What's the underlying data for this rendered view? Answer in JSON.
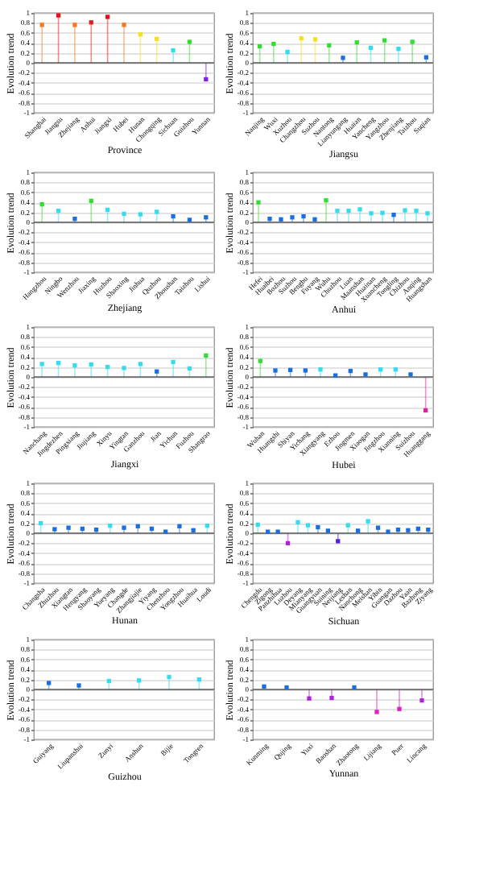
{
  "chart_data": [
    {
      "type": "lollipop",
      "xlabel": "Province",
      "ylabel": "Evolution trend",
      "categories": [
        "Shanghai",
        "Jiangsu",
        "Zhejiang",
        "Anhui",
        "Jiangxi",
        "Hubei",
        "Hunan",
        "Chongqing",
        "Sichuan",
        "Guizhou",
        "Yunnan"
      ],
      "values": [
        0.76,
        0.95,
        0.76,
        0.81,
        0.92,
        0.76,
        0.57,
        0.48,
        0.25,
        0.42,
        -0.33
      ],
      "colors": [
        "#f07a20",
        "#e8101a",
        "#f07a20",
        "#e02020",
        "#e8101a",
        "#f07a20",
        "#f5e020",
        "#f5e020",
        "#33ddee",
        "#33dd33",
        "#8020f0"
      ],
      "ylim": [
        -1,
        1
      ],
      "yticks": [
        -1,
        -0.8,
        -0.6,
        -0.4,
        -0.2,
        0,
        0.2,
        0.4,
        0.6,
        0.8,
        1
      ],
      "grid": "y",
      "marker": "square",
      "ref_lines": [
        {
          "axis": "y",
          "value": 0
        }
      ]
    },
    {
      "type": "lollipop",
      "xlabel": "Jiangsu",
      "ylabel": "Evolution trend",
      "categories": [
        "Nanjing",
        "Wuxi",
        "Xuzhou",
        "Changzhou",
        "Suzhou",
        "Nantong",
        "Lianyungang",
        "Huaian",
        "Yancheng",
        "Yangzhou",
        "Zhenjiang",
        "Taizhou",
        "Suqian"
      ],
      "values": [
        0.33,
        0.38,
        0.22,
        0.49,
        0.47,
        0.35,
        0.1,
        0.41,
        0.3,
        0.45,
        0.28,
        0.42,
        0.11
      ],
      "colors": [
        "#33dd33",
        "#33dd33",
        "#33ddee",
        "#f5e020",
        "#f5e020",
        "#33dd33",
        "#1a6fe0",
        "#33dd33",
        "#33ddee",
        "#33dd33",
        "#33ddee",
        "#33dd33",
        "#1a6fe0"
      ],
      "ylim": [
        -1,
        1
      ],
      "yticks": [
        -1,
        -0.8,
        -0.6,
        -0.4,
        -0.2,
        0,
        0.2,
        0.4,
        0.6,
        0.8,
        1
      ],
      "grid": "y",
      "marker": "square",
      "ref_lines": [
        {
          "axis": "y",
          "value": 0
        }
      ]
    },
    {
      "type": "lollipop",
      "xlabel": "Zhejiang",
      "ylabel": "Evolution trend",
      "categories": [
        "Hangzhou",
        "Ningbo",
        "Wenzhou",
        "Jiaxing",
        "Huzhou",
        "Shaoxing",
        "Jinhua",
        "Quzhou",
        "Zhoushan",
        "Taizhou",
        "Lishui"
      ],
      "values": [
        0.36,
        0.23,
        0.07,
        0.43,
        0.25,
        0.17,
        0.16,
        0.21,
        0.12,
        0.05,
        0.1
      ],
      "colors": [
        "#33dd33",
        "#33ddee",
        "#1a6fe0",
        "#33dd33",
        "#33ddee",
        "#33ddee",
        "#33ddee",
        "#33ddee",
        "#1a6fe0",
        "#1a6fe0",
        "#1a6fe0"
      ],
      "ylim": [
        -1,
        1
      ],
      "yticks": [
        -1,
        -0.8,
        -0.6,
        -0.4,
        -0.2,
        0,
        0.2,
        0.4,
        0.6,
        0.8,
        1
      ],
      "grid": "y",
      "marker": "square",
      "ref_lines": [
        {
          "axis": "y",
          "value": 0
        }
      ]
    },
    {
      "type": "lollipop",
      "xlabel": "Anhui",
      "ylabel": "Evolution trend",
      "categories": [
        "Hefei",
        "Huaibei",
        "Bozhou",
        "Suzhou",
        "Bengbu",
        "Fuyang",
        "Wuhu",
        "Chuzhou",
        "Luan",
        "Maanshan",
        "Huainan",
        "Xuancheng",
        "Tongling",
        "Chizhou",
        "Anqing",
        "Huangshan"
      ],
      "values": [
        0.4,
        0.07,
        0.06,
        0.1,
        0.12,
        0.06,
        0.44,
        0.23,
        0.23,
        0.26,
        0.18,
        0.19,
        0.15,
        0.24,
        0.23,
        0.18
      ],
      "colors": [
        "#33dd33",
        "#1a6fe0",
        "#1a6fe0",
        "#1a6fe0",
        "#1a6fe0",
        "#1a6fe0",
        "#33dd33",
        "#33ddee",
        "#33ddee",
        "#33ddee",
        "#33ddee",
        "#33ddee",
        "#1a6fe0",
        "#33ddee",
        "#33ddee",
        "#33ddee"
      ],
      "ylim": [
        -1,
        1
      ],
      "yticks": [
        -1,
        -0.8,
        -0.6,
        -0.4,
        -0.2,
        0,
        0.2,
        0.4,
        0.6,
        0.8,
        1
      ],
      "grid": "y",
      "marker": "square",
      "ref_lines": [
        {
          "axis": "y",
          "value": 0
        }
      ]
    },
    {
      "type": "lollipop",
      "xlabel": "Jiangxi",
      "ylabel": "Evolution trend",
      "categories": [
        "Nanchang",
        "Jingdezhen",
        "Pingxiang",
        "Jiujiang",
        "Xinyu",
        "Yingtan",
        "Ganzhou",
        "Jian",
        "Yichun",
        "Fuzhou",
        "Shangrao"
      ],
      "values": [
        0.26,
        0.28,
        0.23,
        0.25,
        0.2,
        0.18,
        0.26,
        0.11,
        0.3,
        0.17,
        0.43
      ],
      "colors": [
        "#33ddee",
        "#33ddee",
        "#33ddee",
        "#33ddee",
        "#33ddee",
        "#33ddee",
        "#33ddee",
        "#1a6fe0",
        "#33ddee",
        "#33ddee",
        "#33dd33"
      ],
      "ylim": [
        -1,
        1
      ],
      "yticks": [
        -1,
        -0.8,
        -0.6,
        -0.4,
        -0.2,
        0,
        0.2,
        0.4,
        0.6,
        0.8,
        1
      ],
      "grid": "y",
      "marker": "square",
      "ref_lines": [
        {
          "axis": "y",
          "value": 0
        }
      ]
    },
    {
      "type": "lollipop",
      "xlabel": "Hubei",
      "ylabel": "Evolution trend",
      "categories": [
        "Wuhan",
        "Huangshi",
        "Shiyan",
        "Yichang",
        "Xiangyang",
        "Ezhou",
        "Jingmen",
        "Xiaogan",
        "Jingzhou",
        "Xianning",
        "Suizhou",
        "Huanggang"
      ],
      "values": [
        0.32,
        0.13,
        0.14,
        0.13,
        0.15,
        0.03,
        0.12,
        0.05,
        0.15,
        0.15,
        0.05,
        -0.67
      ],
      "colors": [
        "#33dd33",
        "#1a6fe0",
        "#1a6fe0",
        "#1a6fe0",
        "#33ddee",
        "#1a6fe0",
        "#1a6fe0",
        "#1a6fe0",
        "#33ddee",
        "#33ddee",
        "#1a6fe0",
        "#e020a0"
      ],
      "ylim": [
        -1,
        1
      ],
      "yticks": [
        -1,
        -0.8,
        -0.6,
        -0.4,
        -0.2,
        0,
        0.2,
        0.4,
        0.6,
        0.8,
        1
      ],
      "grid": "y",
      "marker": "square",
      "ref_lines": [
        {
          "axis": "y",
          "value": 0
        }
      ]
    },
    {
      "type": "lollipop",
      "xlabel": "Hunan",
      "ylabel": "Evolution trend",
      "categories": [
        "Changsha",
        "Zhuzhou",
        "Xiangtan",
        "Hengyang",
        "Shaoyang",
        "Yueyang",
        "Changde",
        "Zhangjiajie",
        "Yiyang",
        "Chenzhou",
        "Yongzhou",
        "Huaihua",
        "Loudi"
      ],
      "values": [
        0.2,
        0.08,
        0.11,
        0.09,
        0.07,
        0.15,
        0.11,
        0.14,
        0.09,
        0.03,
        0.14,
        0.06,
        0.15
      ],
      "colors": [
        "#33ddee",
        "#1a6fe0",
        "#1a6fe0",
        "#1a6fe0",
        "#1a6fe0",
        "#33ddee",
        "#1a6fe0",
        "#1a6fe0",
        "#1a6fe0",
        "#1a6fe0",
        "#1a6fe0",
        "#1a6fe0",
        "#33ddee"
      ],
      "ylim": [
        -1,
        1
      ],
      "yticks": [
        -1,
        -0.8,
        -0.6,
        -0.4,
        -0.2,
        0,
        0.2,
        0.4,
        0.6,
        0.8,
        1
      ],
      "grid": "y",
      "marker": "square",
      "ref_lines": [
        {
          "axis": "y",
          "value": 0
        }
      ]
    },
    {
      "type": "lollipop",
      "xlabel": "Sichuan",
      "ylabel": "Evolution trend",
      "categories": [
        "Chengdu",
        "Zigong",
        "Panzhihua",
        "Luzhou",
        "Deyang",
        "Mianyang",
        "Guangyuan",
        "Suining",
        "Neijiang",
        "Leshan",
        "Nanchong",
        "Meishan",
        "Yibin",
        "Guangan",
        "Dazhou",
        "Yaan",
        "Bazhong",
        "Ziyang"
      ],
      "values": [
        0.17,
        0.03,
        0.03,
        -0.2,
        0.22,
        0.16,
        0.12,
        0.05,
        -0.16,
        0.16,
        0.05,
        0.24,
        0.11,
        0.03,
        0.07,
        0.06,
        0.09,
        0.07
      ],
      "colors": [
        "#33ddee",
        "#1a6fe0",
        "#1a6fe0",
        "#b020e0",
        "#33ddee",
        "#33ddee",
        "#1a6fe0",
        "#1a6fe0",
        "#5020e0",
        "#33ddee",
        "#1a6fe0",
        "#33ddee",
        "#1a6fe0",
        "#1a6fe0",
        "#1a6fe0",
        "#1a6fe0",
        "#1a6fe0",
        "#1a6fe0"
      ],
      "ylim": [
        -1,
        1
      ],
      "yticks": [
        -1,
        -0.8,
        -0.6,
        -0.4,
        -0.2,
        0,
        0.2,
        0.4,
        0.6,
        0.8,
        1
      ],
      "grid": "y",
      "marker": "square",
      "ref_lines": [
        {
          "axis": "y",
          "value": 0
        }
      ]
    },
    {
      "type": "lollipop",
      "xlabel": "Guizhou",
      "ylabel": "Evolution trend",
      "categories": [
        "Guiyang",
        "Liupanshui",
        "Zunyi",
        "Anshun",
        "Bijie",
        "Tongren"
      ],
      "values": [
        0.13,
        0.08,
        0.17,
        0.18,
        0.25,
        0.2
      ],
      "colors": [
        "#1a6fe0",
        "#1a6fe0",
        "#33ddee",
        "#33ddee",
        "#33ddee",
        "#33ddee"
      ],
      "ylim": [
        -1,
        1
      ],
      "yticks": [
        -1,
        -0.8,
        -0.6,
        -0.4,
        -0.2,
        0,
        0.2,
        0.4,
        0.6,
        0.8,
        1
      ],
      "grid": "y",
      "marker": "square",
      "ref_lines": [
        {
          "axis": "y",
          "value": 0
        }
      ]
    },
    {
      "type": "lollipop",
      "xlabel": "Yunnan",
      "ylabel": "Evolution trend",
      "categories": [
        "Kunming",
        "Qujing",
        "Yuxi",
        "Baoshan",
        "Zhaotong",
        "Lijiang",
        "Puer",
        "Lincang"
      ],
      "values": [
        0.06,
        0.04,
        -0.18,
        -0.17,
        0.04,
        -0.45,
        -0.39,
        -0.22
      ],
      "colors": [
        "#1a6fe0",
        "#1a6fe0",
        "#b020e0",
        "#b020e0",
        "#1a6fe0",
        "#e020c0",
        "#e020c0",
        "#b020e0"
      ],
      "ylim": [
        -1,
        1
      ],
      "yticks": [
        -1,
        -0.8,
        -0.6,
        -0.4,
        -0.2,
        0,
        0.2,
        0.4,
        0.6,
        0.8,
        1
      ],
      "grid": "y",
      "marker": "square",
      "ref_lines": [
        {
          "axis": "y",
          "value": 0
        }
      ]
    }
  ]
}
